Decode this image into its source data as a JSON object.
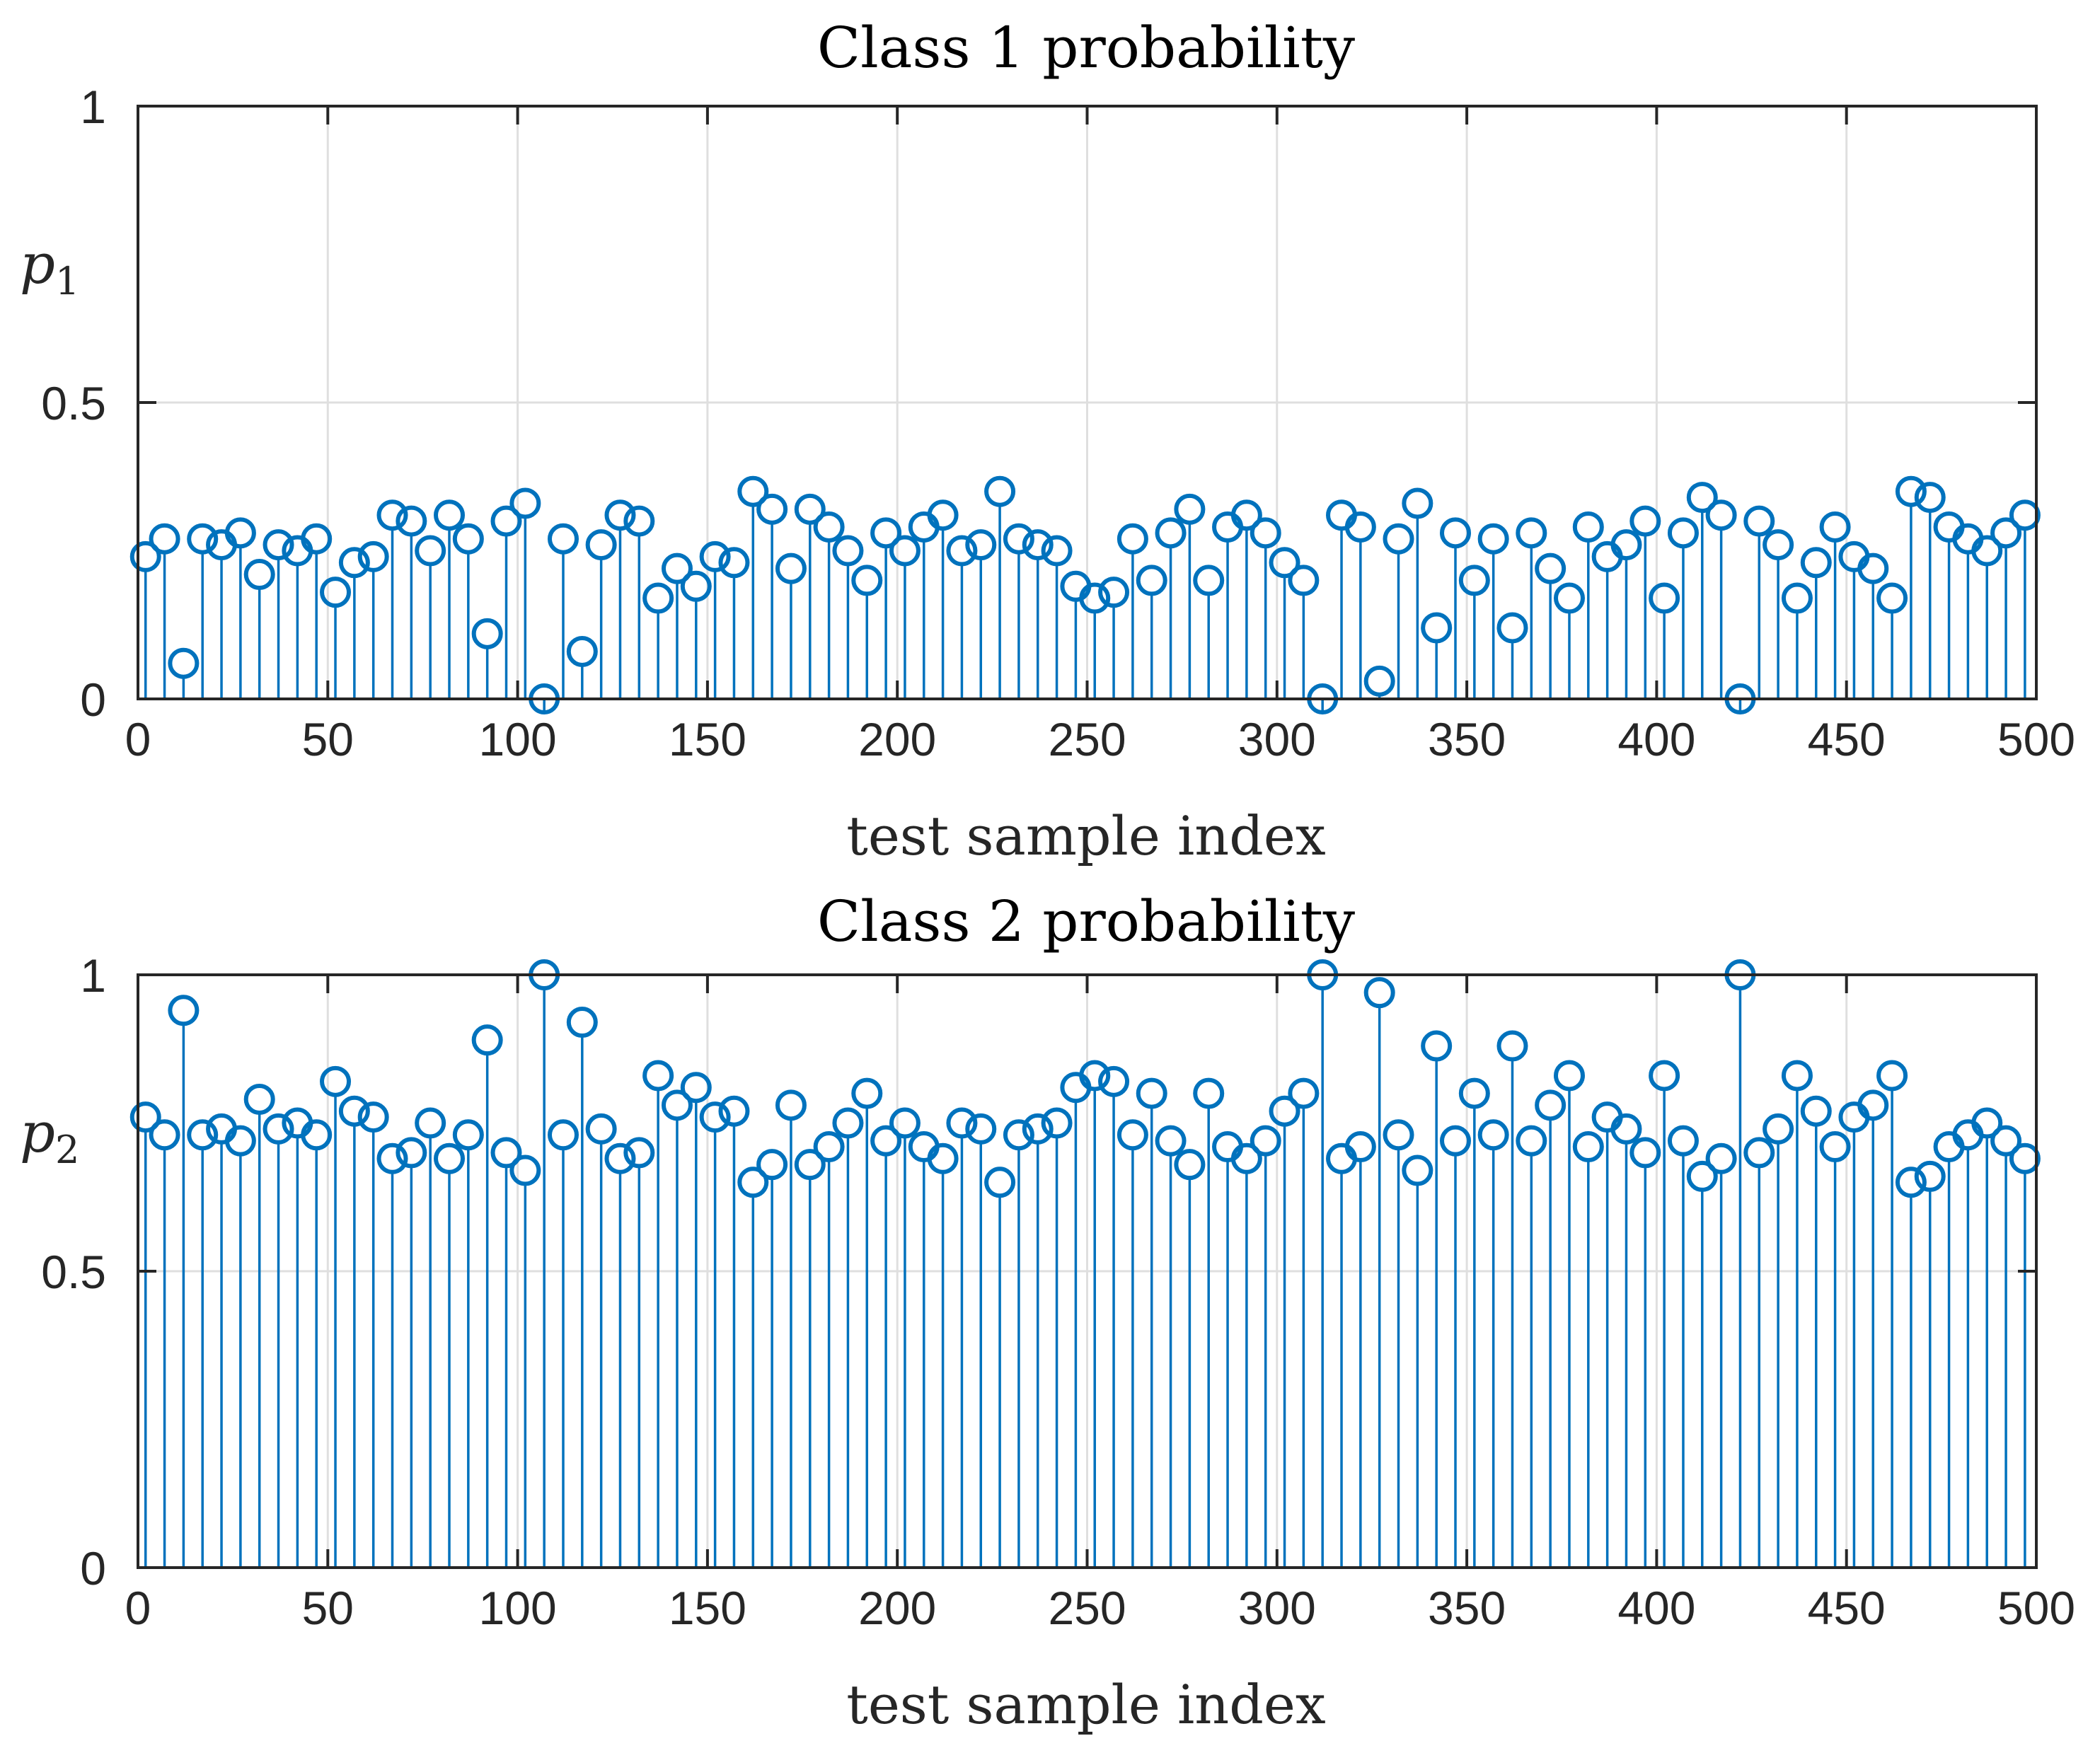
{
  "chart_data": [
    {
      "type": "stem",
      "title": "Class 1 probability",
      "xlabel": "test sample index",
      "ylabel": "p",
      "ylabel_subscript": "1",
      "xlim": [
        0,
        500
      ],
      "ylim": [
        0,
        1
      ],
      "xticks": [
        0,
        50,
        100,
        150,
        200,
        250,
        300,
        350,
        400,
        450,
        500
      ],
      "xtick_labels": [
        "0",
        "50",
        "100",
        "150",
        "200",
        "250",
        "300",
        "350",
        "400",
        "450",
        "500"
      ],
      "yticks": [
        0,
        0.5,
        1
      ],
      "ytick_labels": [
        "0",
        "0.5",
        "1"
      ],
      "grid": true,
      "color": "#0072bd",
      "x": [
        2,
        7,
        12,
        17,
        22,
        27,
        32,
        37,
        42,
        47,
        52,
        57,
        62,
        67,
        72,
        77,
        82,
        87,
        92,
        97,
        102,
        107,
        112,
        117,
        122,
        127,
        132,
        137,
        142,
        147,
        152,
        157,
        162,
        167,
        172,
        177,
        182,
        187,
        192,
        197,
        202,
        207,
        212,
        217,
        222,
        227,
        232,
        237,
        242,
        247,
        252,
        257,
        262,
        267,
        272,
        277,
        282,
        287,
        292,
        297,
        302,
        307,
        312,
        317,
        322,
        327,
        332,
        337,
        342,
        347,
        352,
        357,
        362,
        367,
        372,
        377,
        382,
        387,
        392,
        397,
        402,
        407,
        412,
        417,
        422,
        427,
        432,
        437,
        442,
        447,
        452,
        457,
        462,
        467,
        472,
        477,
        482,
        487,
        492,
        497
      ],
      "y": [
        0.24,
        0.27,
        0.06,
        0.27,
        0.26,
        0.28,
        0.21,
        0.26,
        0.25,
        0.27,
        0.18,
        0.23,
        0.24,
        0.31,
        0.3,
        0.25,
        0.31,
        0.27,
        0.11,
        0.3,
        0.33,
        0.0,
        0.27,
        0.08,
        0.26,
        0.31,
        0.3,
        0.17,
        0.22,
        0.19,
        0.24,
        0.23,
        0.35,
        0.32,
        0.22,
        0.32,
        0.29,
        0.25,
        0.2,
        0.28,
        0.25,
        0.29,
        0.31,
        0.25,
        0.26,
        0.35,
        0.27,
        0.26,
        0.25,
        0.19,
        0.17,
        0.18,
        0.27,
        0.2,
        0.28,
        0.32,
        0.2,
        0.29,
        0.31,
        0.28,
        0.23,
        0.2,
        0.0,
        0.31,
        0.29,
        0.03,
        0.27,
        0.33,
        0.12,
        0.28,
        0.2,
        0.27,
        0.12,
        0.28,
        0.22,
        0.17,
        0.29,
        0.24,
        0.26,
        0.3,
        0.17,
        0.28,
        0.34,
        0.31,
        0.0,
        0.3,
        0.26,
        0.17,
        0.23,
        0.29,
        0.24,
        0.22,
        0.17,
        0.35,
        0.34,
        0.29,
        0.27,
        0.25,
        0.28,
        0.31
      ]
    },
    {
      "type": "stem",
      "title": "Class 2 probability",
      "xlabel": "test sample index",
      "ylabel": "p",
      "ylabel_subscript": "2",
      "xlim": [
        0,
        500
      ],
      "ylim": [
        0,
        1
      ],
      "xticks": [
        0,
        50,
        100,
        150,
        200,
        250,
        300,
        350,
        400,
        450,
        500
      ],
      "xtick_labels": [
        "0",
        "50",
        "100",
        "150",
        "200",
        "250",
        "300",
        "350",
        "400",
        "450",
        "500"
      ],
      "yticks": [
        0,
        0.5,
        1
      ],
      "ytick_labels": [
        "0",
        "0.5",
        "1"
      ],
      "grid": true,
      "color": "#0072bd",
      "x": [
        2,
        7,
        12,
        17,
        22,
        27,
        32,
        37,
        42,
        47,
        52,
        57,
        62,
        67,
        72,
        77,
        82,
        87,
        92,
        97,
        102,
        107,
        112,
        117,
        122,
        127,
        132,
        137,
        142,
        147,
        152,
        157,
        162,
        167,
        172,
        177,
        182,
        187,
        192,
        197,
        202,
        207,
        212,
        217,
        222,
        227,
        232,
        237,
        242,
        247,
        252,
        257,
        262,
        267,
        272,
        277,
        282,
        287,
        292,
        297,
        302,
        307,
        312,
        317,
        322,
        327,
        332,
        337,
        342,
        347,
        352,
        357,
        362,
        367,
        372,
        377,
        382,
        387,
        392,
        397,
        402,
        407,
        412,
        417,
        422,
        427,
        432,
        437,
        442,
        447,
        452,
        457,
        462,
        467,
        472,
        477,
        482,
        487,
        492,
        497
      ],
      "y": [
        0.76,
        0.73,
        0.94,
        0.73,
        0.74,
        0.72,
        0.79,
        0.74,
        0.75,
        0.73,
        0.82,
        0.77,
        0.76,
        0.69,
        0.7,
        0.75,
        0.69,
        0.73,
        0.89,
        0.7,
        0.67,
        1.0,
        0.73,
        0.92,
        0.74,
        0.69,
        0.7,
        0.83,
        0.78,
        0.81,
        0.76,
        0.77,
        0.65,
        0.68,
        0.78,
        0.68,
        0.71,
        0.75,
        0.8,
        0.72,
        0.75,
        0.71,
        0.69,
        0.75,
        0.74,
        0.65,
        0.73,
        0.74,
        0.75,
        0.81,
        0.83,
        0.82,
        0.73,
        0.8,
        0.72,
        0.68,
        0.8,
        0.71,
        0.69,
        0.72,
        0.77,
        0.8,
        1.0,
        0.69,
        0.71,
        0.97,
        0.73,
        0.67,
        0.88,
        0.72,
        0.8,
        0.73,
        0.88,
        0.72,
        0.78,
        0.83,
        0.71,
        0.76,
        0.74,
        0.7,
        0.83,
        0.72,
        0.66,
        0.69,
        1.0,
        0.7,
        0.74,
        0.83,
        0.77,
        0.71,
        0.76,
        0.78,
        0.83,
        0.65,
        0.66,
        0.71,
        0.73,
        0.75,
        0.72,
        0.69
      ]
    }
  ]
}
